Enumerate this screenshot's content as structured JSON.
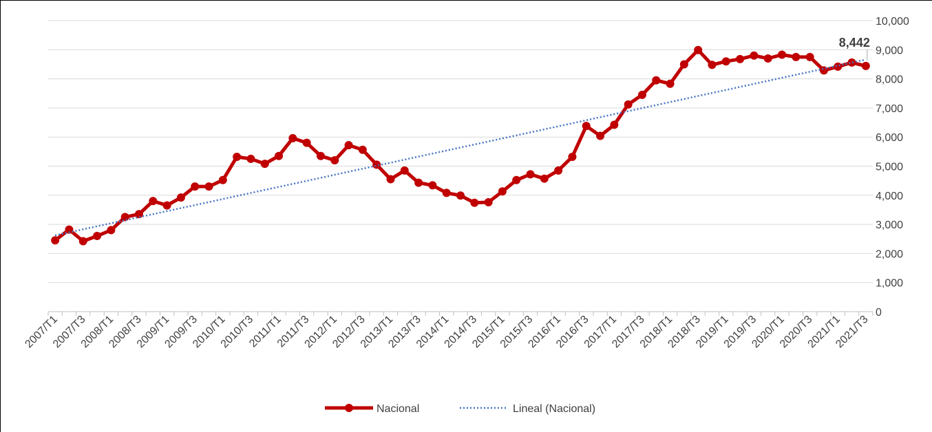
{
  "chart_data": {
    "type": "line",
    "categories": [
      "2007/T1",
      null,
      "2007/T3",
      null,
      "2008/T1",
      null,
      "2008/T3",
      null,
      "2009/T1",
      null,
      "2009/T3",
      null,
      "2010/T1",
      null,
      "2010/T3",
      null,
      "2011/T1",
      null,
      "2011/T3",
      null,
      "2012/T1",
      null,
      "2012/T3",
      null,
      "2013/T1",
      null,
      "2013/T3",
      null,
      "2014/T1",
      null,
      "2014/T3",
      null,
      "2015/T1",
      null,
      "2015/T3",
      null,
      "2016/T1",
      null,
      "2016/T3",
      null,
      "2017/T1",
      null,
      "2017/T3",
      null,
      "2018/T1",
      null,
      "2018/T3",
      null,
      "2019/T1",
      null,
      "2019/T3",
      null,
      "2020/T1",
      null,
      "2020/T3",
      null,
      "2021/T1",
      null,
      "2021/T3"
    ],
    "series": [
      {
        "name": "Nacional",
        "color": "#c00000",
        "values": [
          2450,
          2820,
          2420,
          2600,
          2800,
          3250,
          3350,
          3800,
          3650,
          3920,
          4300,
          4300,
          4520,
          5320,
          5250,
          5080,
          5350,
          5960,
          5800,
          5350,
          5200,
          5720,
          5560,
          5050,
          4550,
          4850,
          4430,
          4340,
          4080,
          3990,
          3740,
          3760,
          4130,
          4520,
          4720,
          4570,
          4850,
          5320,
          6380,
          6040,
          6420,
          7120,
          7450,
          7950,
          7830,
          8500,
          8990,
          8480,
          8600,
          8680,
          8800,
          8700,
          8830,
          8750,
          8750,
          8290,
          8420,
          8560,
          8442
        ],
        "value_labels": [
          null,
          null,
          null,
          null,
          null,
          null,
          null,
          null,
          null,
          null,
          null,
          null,
          null,
          null,
          null,
          null,
          null,
          null,
          null,
          null,
          null,
          null,
          null,
          null,
          null,
          null,
          null,
          null,
          null,
          null,
          null,
          null,
          null,
          null,
          null,
          null,
          null,
          null,
          null,
          null,
          null,
          null,
          null,
          null,
          null,
          null,
          null,
          null,
          null,
          null,
          null,
          null,
          null,
          null,
          null,
          null,
          null,
          null,
          "8,442"
        ]
      }
    ],
    "trend": {
      "name": "Lineal (Nacional)",
      "color": "#4472c4",
      "start": 2620,
      "end": 8660
    },
    "ylim": [
      0,
      10000
    ],
    "yticks": [
      0,
      {
        "value": 1000,
        "label": "1,000"
      },
      {
        "value": 2000,
        "label": "2,000"
      },
      {
        "value": 3000,
        "label": "3,000"
      },
      {
        "value": 4000,
        "label": "4,000"
      },
      {
        "value": 5000,
        "label": "5,000"
      },
      {
        "value": 6000,
        "label": "6,000"
      },
      {
        "value": 7000,
        "label": "7,000"
      },
      {
        "value": 8000,
        "label": "8,000"
      },
      {
        "value": 9000,
        "label": "9,000"
      },
      {
        "value": 10000,
        "label": "10,000"
      }
    ],
    "grid": true,
    "legend": "bottom"
  }
}
